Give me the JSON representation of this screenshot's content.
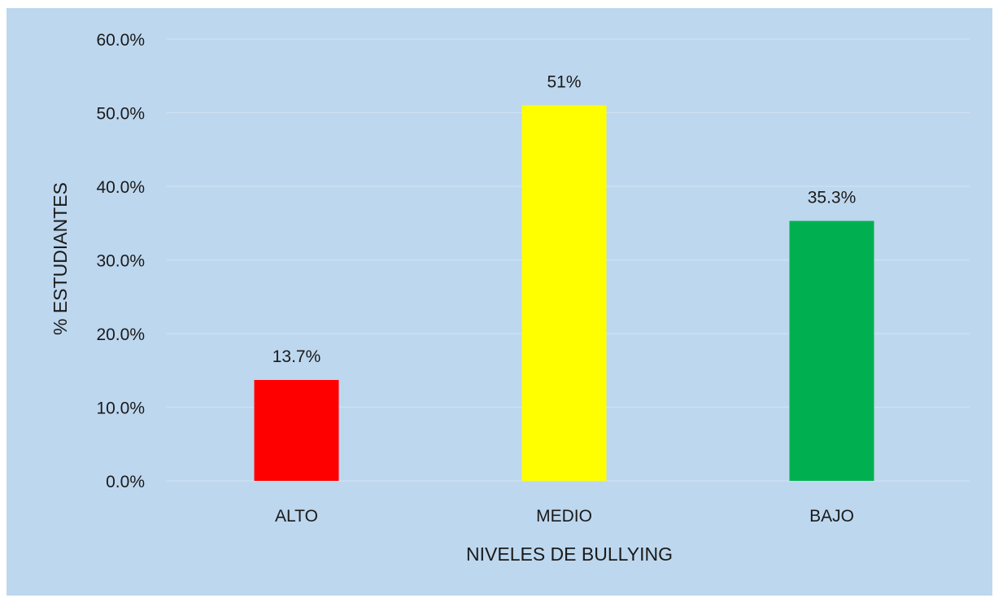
{
  "chart_data": {
    "type": "bar",
    "categories": [
      "ALTO",
      "MEDIO",
      "BAJO"
    ],
    "values": [
      13.7,
      51,
      35.3
    ],
    "data_labels": [
      "13.7%",
      "51%",
      "35.3%"
    ],
    "colors": [
      "#ff0000",
      "#ffff00",
      "#00b050"
    ],
    "xlabel": "NIVELES DE BULLYING",
    "ylabel": "% ESTUDIANTES",
    "ylim": [
      0,
      60
    ],
    "yticks": [
      0,
      10,
      20,
      30,
      40,
      50,
      60
    ],
    "ytick_labels": [
      "0.0%",
      "10.0%",
      "20.0%",
      "30.0%",
      "40.0%",
      "50.0%",
      "60.0%"
    ],
    "grid": true,
    "background_color": "#bdd7ee"
  }
}
